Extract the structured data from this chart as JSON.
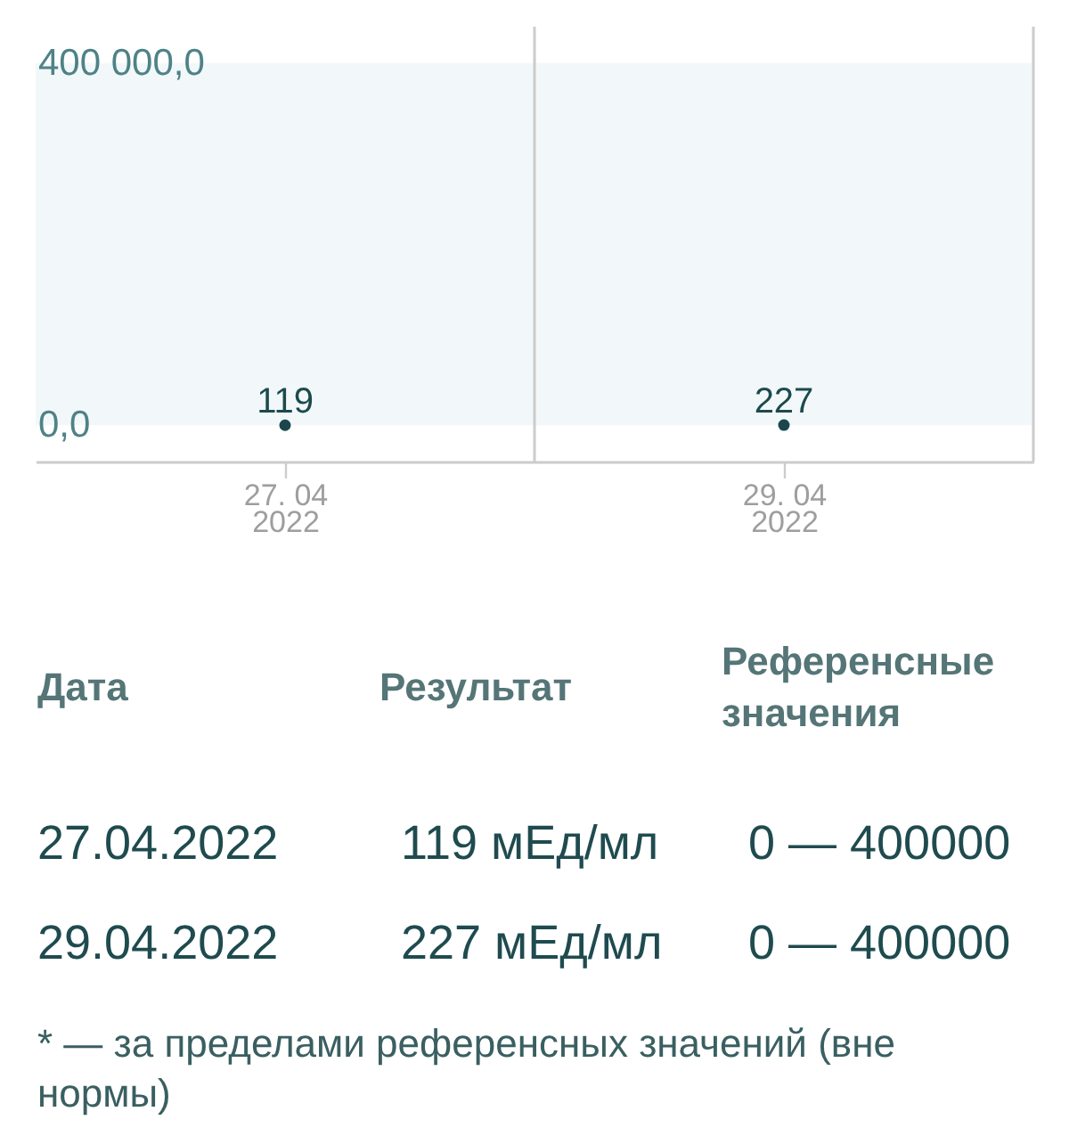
{
  "chart_data": {
    "type": "scatter",
    "x": [
      "2022-04-27",
      "2022-04-29"
    ],
    "xlim": [
      "2022-04-26",
      "2022-04-30"
    ],
    "xticks": [
      {
        "value": "2022-04-27",
        "label": "27. 04\n2022"
      },
      {
        "value": "2022-04-29",
        "label": "29. 04\n2022"
      }
    ],
    "ylim": [
      -40000,
      440000
    ],
    "yticks": [
      {
        "value": 0,
        "label": "0,0"
      },
      {
        "value": 400000,
        "label": "400 000,0"
      }
    ],
    "series": [
      {
        "color": "#1b474c",
        "values": [
          119,
          227
        ]
      }
    ],
    "marker": "circle",
    "data_labels": true,
    "bands": [
      {
        "axis": "y",
        "from": 0,
        "to": 400000,
        "color": "#f2f8f9"
      }
    ],
    "ref_lines": [
      {
        "axis": "x",
        "value": "2022-04-28",
        "color": "#cccccc"
      },
      {
        "axis": "x",
        "value": "2022-04-30",
        "color": "#cccccc"
      }
    ],
    "annotations": [
      "Дата",
      "Результат",
      "Референсные\nзначения",
      "27.04.2022",
      "119 мЕд/мл",
      "0 — 400000",
      "29.04.2022",
      "227 мЕд/мл",
      "0 — 400000",
      "* — за пределами референсных значений (вне\nнормы)"
    ]
  }
}
